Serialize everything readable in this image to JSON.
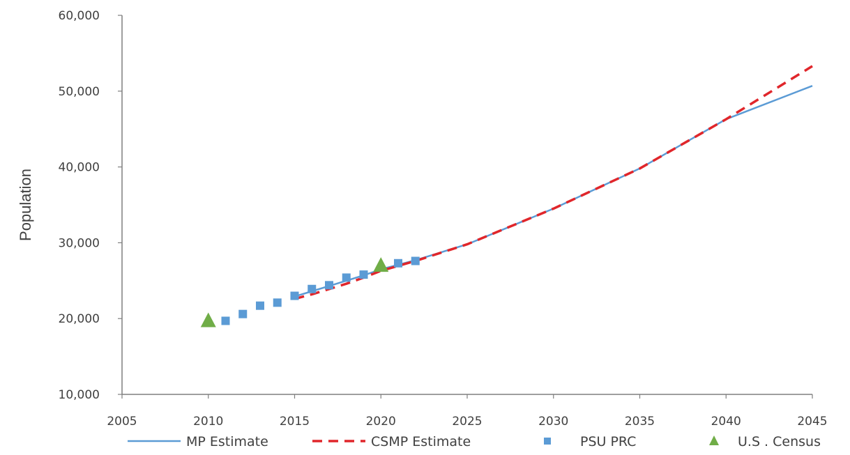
{
  "chart_data": {
    "type": "line",
    "title": "",
    "xlabel": "",
    "ylabel": "Population",
    "xlim": [
      2005,
      2045
    ],
    "ylim": [
      10000,
      60000
    ],
    "x_ticks": [
      2005,
      2010,
      2015,
      2020,
      2025,
      2030,
      2035,
      2040,
      2045
    ],
    "x_tick_labels": [
      "2005",
      "2010",
      "2015",
      "2020",
      "2025",
      "2030",
      "2035",
      "2040",
      "2045"
    ],
    "y_ticks": [
      10000,
      20000,
      30000,
      40000,
      50000,
      60000
    ],
    "y_tick_labels": [
      "10,000",
      "20,000",
      "30,000",
      "40,000",
      "50,000",
      "60,000"
    ],
    "grid": false,
    "legend_position": "bottom",
    "series": [
      {
        "name": "MP Estimate",
        "style": "solid-line",
        "color": "#5b9bd5",
        "points": [
          [
            2015,
            22900
          ],
          [
            2016,
            23600
          ],
          [
            2017,
            24300
          ],
          [
            2018,
            25000
          ],
          [
            2019,
            25700
          ],
          [
            2020,
            26500
          ],
          [
            2022,
            27700
          ],
          [
            2025,
            29800
          ],
          [
            2030,
            34500
          ],
          [
            2035,
            39800
          ],
          [
            2040,
            46300
          ],
          [
            2045,
            50700
          ]
        ]
      },
      {
        "name": "CSMP Estimate",
        "style": "dashed-line",
        "color": "#e0262b",
        "points": [
          [
            2015,
            22600
          ],
          [
            2016,
            23200
          ],
          [
            2017,
            23900
          ],
          [
            2018,
            24600
          ],
          [
            2019,
            25400
          ],
          [
            2020,
            26300
          ],
          [
            2022,
            27600
          ],
          [
            2025,
            29800
          ],
          [
            2030,
            34500
          ],
          [
            2035,
            39800
          ],
          [
            2040,
            46300
          ],
          [
            2045,
            53300
          ]
        ]
      },
      {
        "name": "PSU PRC",
        "style": "square-markers",
        "color": "#5b9bd5",
        "points": [
          [
            2011,
            19700
          ],
          [
            2012,
            20600
          ],
          [
            2013,
            21700
          ],
          [
            2014,
            22100
          ],
          [
            2015,
            23000
          ],
          [
            2016,
            23900
          ],
          [
            2017,
            24400
          ],
          [
            2018,
            25400
          ],
          [
            2019,
            25800
          ],
          [
            2021,
            27300
          ],
          [
            2022,
            27600
          ]
        ]
      },
      {
        "name": "U.S . Census",
        "style": "triangle-markers",
        "color": "#70ad47",
        "points": [
          [
            2010,
            19600
          ],
          [
            2020,
            26900
          ]
        ]
      }
    ]
  }
}
